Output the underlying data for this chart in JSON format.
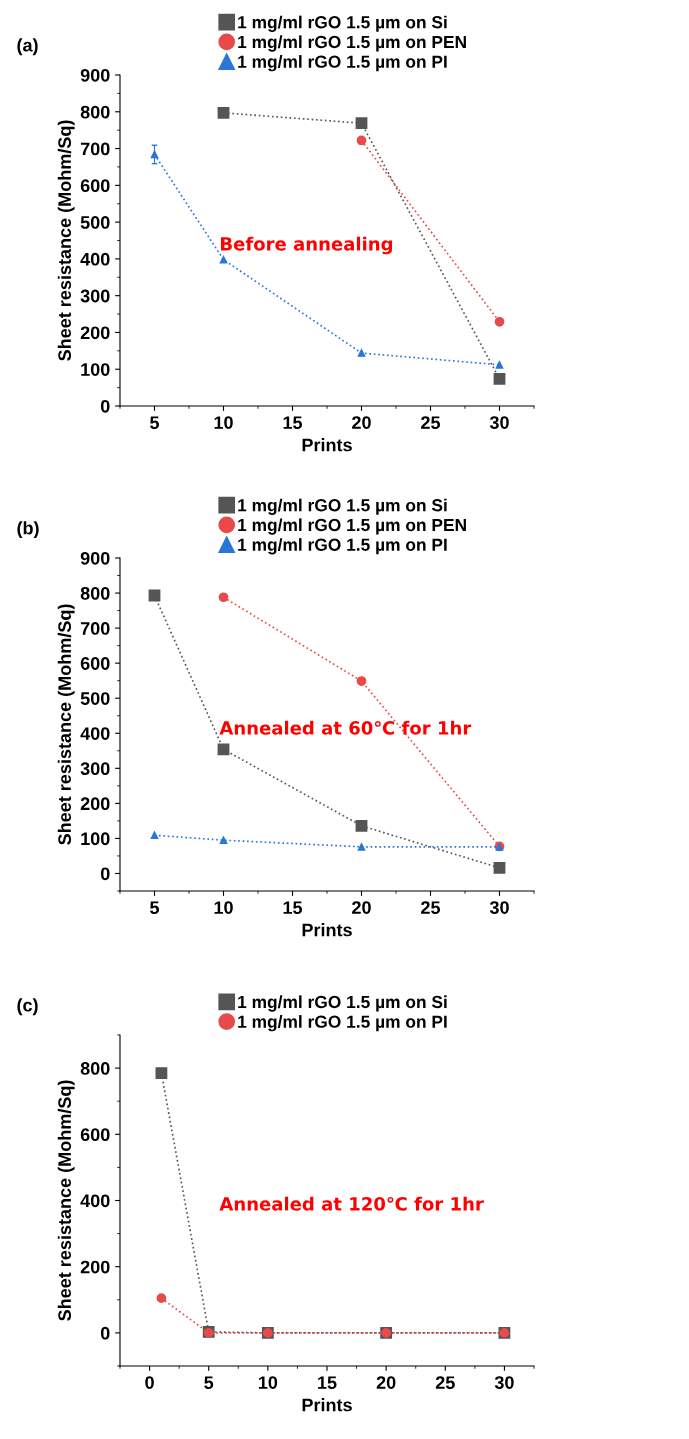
{
  "chart_data": [
    {
      "type": "line",
      "title": "(a)",
      "xlabel": "Prints",
      "ylabel": "Sheet resistance (Mohm/Sq)",
      "xlim": [
        2.5,
        32.5
      ],
      "xticks": [
        5,
        10,
        15,
        20,
        25,
        30
      ],
      "ylim": [
        0,
        900
      ],
      "yticks": [
        0,
        100,
        200,
        300,
        400,
        500,
        600,
        700,
        800,
        900
      ],
      "line_style": "dotted",
      "legend": "top",
      "grid": false,
      "annotations": [
        "Before annealing"
      ],
      "series": [
        {
          "name": "1 mg/ml rGO 1.5 µm on Si",
          "color": "#555555",
          "marker": "square",
          "x": [
            10,
            20,
            30
          ],
          "values": [
            797,
            769,
            74
          ]
        },
        {
          "name": "1 mg/ml rGO 1.5 µm on PEN",
          "color": "#e84a4a",
          "marker": "circle",
          "x": [
            20,
            30
          ],
          "values": [
            722,
            229
          ]
        },
        {
          "name": "1 mg/ml rGO 1.5 µm on PI",
          "color": "#2a76d8",
          "marker": "triangle",
          "x": [
            5,
            10,
            20,
            30
          ],
          "values": [
            684,
            398,
            144,
            112
          ],
          "errors": [
            25,
            null,
            null,
            null
          ]
        }
      ]
    },
    {
      "type": "line",
      "title": "(b)",
      "xlabel": "Prints",
      "ylabel": "Sheet resistance (Mohm/Sq)",
      "xlim": [
        2.5,
        32.5
      ],
      "xticks": [
        5,
        10,
        15,
        20,
        25,
        30
      ],
      "ylim": [
        -50,
        900
      ],
      "yticks": [
        0,
        100,
        200,
        300,
        400,
        500,
        600,
        700,
        800,
        900
      ],
      "line_style": "dotted",
      "legend": "top",
      "grid": false,
      "annotations": [
        "Annealed at 60℃ for 1hr"
      ],
      "series": [
        {
          "name": "1 mg/ml rGO 1.5 µm on Si",
          "color": "#555555",
          "marker": "square",
          "x": [
            5,
            10,
            20,
            30
          ],
          "values": [
            793,
            354,
            136,
            16
          ]
        },
        {
          "name": "1 mg/ml rGO 1.5 µm on PEN",
          "color": "#e84a4a",
          "marker": "circle",
          "x": [
            10,
            20,
            30
          ],
          "values": [
            788,
            549,
            77
          ]
        },
        {
          "name": "1 mg/ml rGO 1.5 µm on PI",
          "color": "#2a76d8",
          "marker": "triangle",
          "x": [
            5,
            10,
            20,
            30
          ],
          "values": [
            109,
            95,
            76,
            76
          ]
        }
      ]
    },
    {
      "type": "line",
      "title": "(c)",
      "xlabel": "Prints",
      "ylabel": "Sheet resistance (Mohm/Sq)",
      "xlim": [
        -2.5,
        32.5
      ],
      "xticks": [
        0,
        5,
        10,
        15,
        20,
        25,
        30
      ],
      "ylim": [
        -100,
        900
      ],
      "yticks": [
        0,
        200,
        400,
        600,
        800
      ],
      "line_style": "dotted",
      "legend": "top",
      "grid": false,
      "annotations": [
        "Annealed at 120℃ for 1hr"
      ],
      "series": [
        {
          "name": "1 mg/ml rGO 1.5 µm on Si",
          "color": "#555555",
          "marker": "square",
          "x": [
            1,
            5,
            10,
            20,
            30
          ],
          "values": [
            785,
            3,
            0,
            0,
            0
          ]
        },
        {
          "name": "1 mg/ml rGO 1.5 µm on PI",
          "color": "#e84a4a",
          "marker": "circle",
          "x": [
            1,
            5,
            10,
            20,
            30
          ],
          "values": [
            105,
            0,
            0,
            0,
            0
          ]
        }
      ]
    }
  ]
}
